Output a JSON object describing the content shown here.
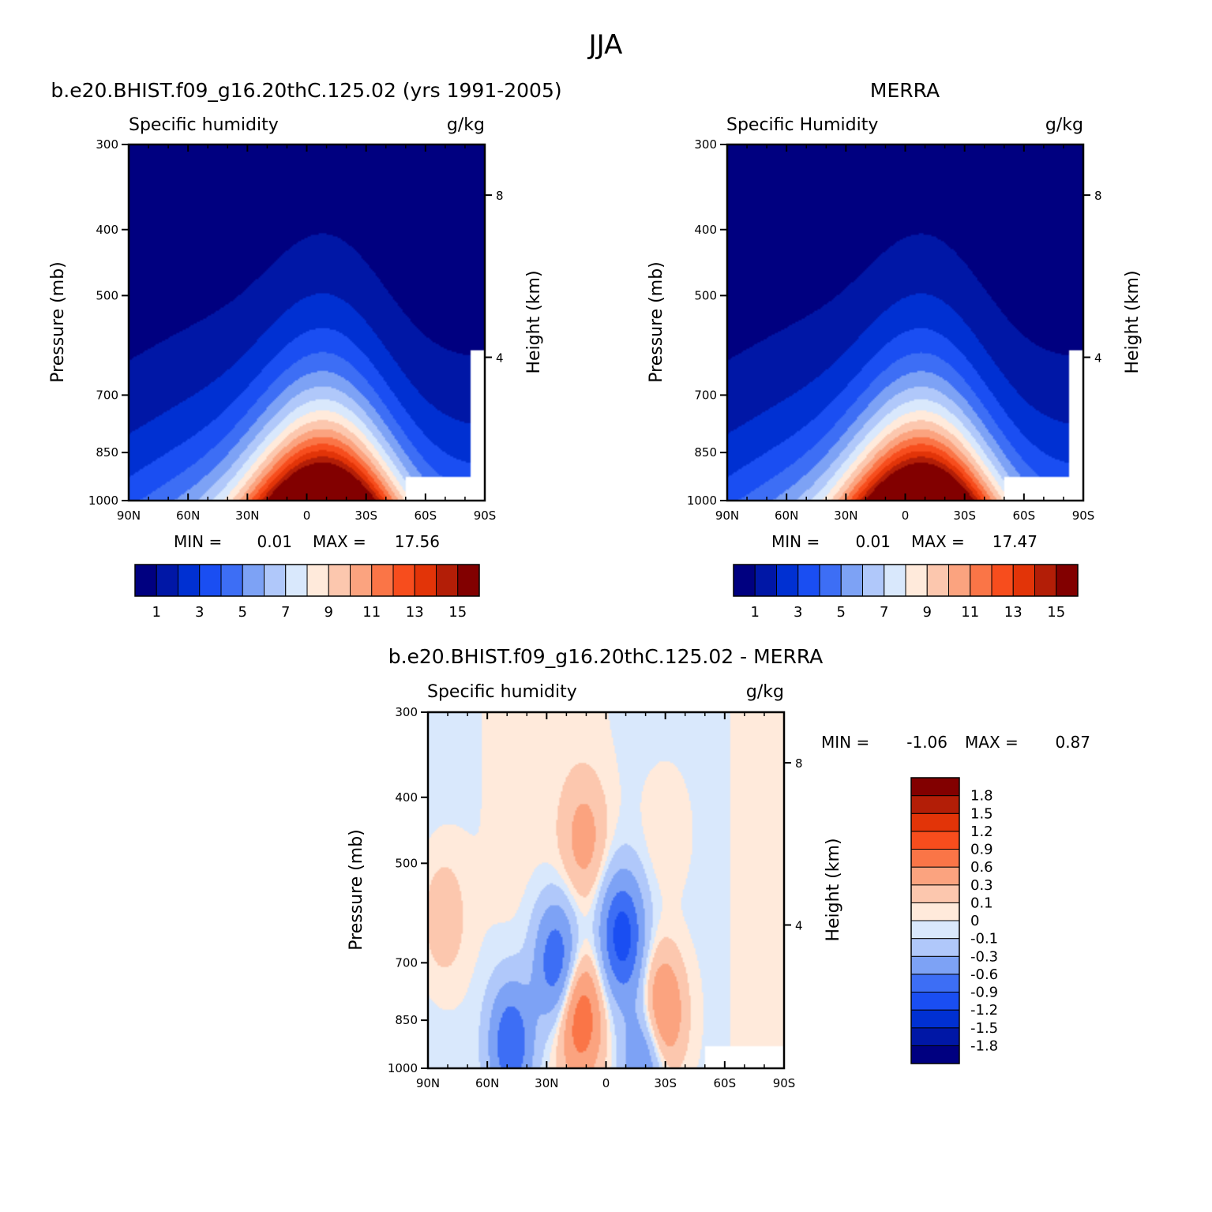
{
  "figure_title": "JJA",
  "colors": {
    "humidity": [
      "#000080",
      "#0017a6",
      "#0030d2",
      "#1a4ef2",
      "#3d6ef5",
      "#7da2f5",
      "#b0c8fa",
      "#d9e8fc",
      "#ffeadb",
      "#fcc7ae",
      "#fba37f",
      "#fa7547",
      "#f74d1d",
      "#e23408",
      "#b31e07",
      "#820000"
    ],
    "difference": [
      "#000080",
      "#0017a6",
      "#0030d2",
      "#1a4ef2",
      "#3d6ef5",
      "#7da2f5",
      "#b0c8fa",
      "#d9e8fc",
      "#ffeadb",
      "#fcc7ae",
      "#fba37f",
      "#fa7547",
      "#f74d1d",
      "#e23408",
      "#b31e07",
      "#820000"
    ]
  },
  "chart_data": [
    {
      "type": "heatmap",
      "title": "b.e20.BHIST.f09_g16.20thC.125.02 (yrs 1991-2005)",
      "left_label": "Specific humidity",
      "right_label": "g/kg",
      "xlabel": "",
      "ylabel": "Pressure (mb)",
      "y2label": "Height (km)",
      "x_ticks": [
        "90N",
        "60N",
        "30N",
        "0",
        "30S",
        "60S",
        "90S"
      ],
      "y_ticks": [
        "300",
        "400",
        "500",
        "700",
        "850",
        "1000"
      ],
      "y2_ticks": [
        "8",
        "4"
      ],
      "min_label": "MIN =",
      "min": "0.01",
      "max_label": "MAX =",
      "max": "17.56",
      "colorbar_labels": [
        "1",
        "3",
        "5",
        "7",
        "9",
        "11",
        "13",
        "15"
      ],
      "field": {
        "peak_lat": -8,
        "peak_value": 17.56,
        "surface_min_lat": -90
      }
    },
    {
      "type": "heatmap",
      "title": "MERRA",
      "left_label": "Specific Humidity",
      "right_label": "g/kg",
      "xlabel": "",
      "ylabel": "Pressure (mb)",
      "y2label": "Height (km)",
      "x_ticks": [
        "90N",
        "60N",
        "30N",
        "0",
        "30S",
        "60S",
        "90S"
      ],
      "y_ticks": [
        "300",
        "400",
        "500",
        "700",
        "850",
        "1000"
      ],
      "y2_ticks": [
        "8",
        "4"
      ],
      "min_label": "MIN =",
      "min": "0.01",
      "max_label": "MAX =",
      "max": "17.47",
      "colorbar_labels": [
        "1",
        "3",
        "5",
        "7",
        "9",
        "11",
        "13",
        "15"
      ],
      "field": {
        "peak_lat": -8,
        "peak_value": 17.47
      }
    },
    {
      "type": "heatmap",
      "title": "b.e20.BHIST.f09_g16.20thC.125.02 - MERRA",
      "left_label": "Specific humidity",
      "right_label": "g/kg",
      "xlabel": "",
      "ylabel": "Pressure (mb)",
      "y2label": "Height (km)",
      "x_ticks": [
        "90N",
        "60N",
        "30N",
        "0",
        "30S",
        "60S",
        "90S"
      ],
      "y_ticks": [
        "300",
        "400",
        "500",
        "700",
        "850",
        "1000"
      ],
      "y2_ticks": [
        "8",
        "4"
      ],
      "min_label": "MIN =",
      "min": "-1.06",
      "max_label": "MAX =",
      "max": "0.87",
      "colorbar_labels": [
        "1.8",
        "1.5",
        "1.2",
        "0.9",
        "0.6",
        "0.3",
        "0.1",
        "0",
        "-0.1",
        "-0.3",
        "-0.6",
        "-0.9",
        "-1.2",
        "-1.5",
        "-1.8"
      ],
      "field": {
        "blobs": [
          {
            "lat": 48,
            "p": 920,
            "amp": -0.9
          },
          {
            "lat": 25,
            "p": 700,
            "amp": -0.9
          },
          {
            "lat": -8,
            "p": 640,
            "amp": -1.06
          },
          {
            "lat": -28,
            "p": 835,
            "amp": 0.8
          },
          {
            "lat": 13,
            "p": 840,
            "amp": 0.87
          },
          {
            "lat": 11,
            "p": 460,
            "amp": 0.4
          },
          {
            "lat": -30,
            "p": 450,
            "amp": 0.12
          },
          {
            "lat": 82,
            "p": 600,
            "amp": 0.25
          },
          {
            "lat": -20,
            "p": 960,
            "amp": -0.7
          }
        ]
      }
    }
  ]
}
